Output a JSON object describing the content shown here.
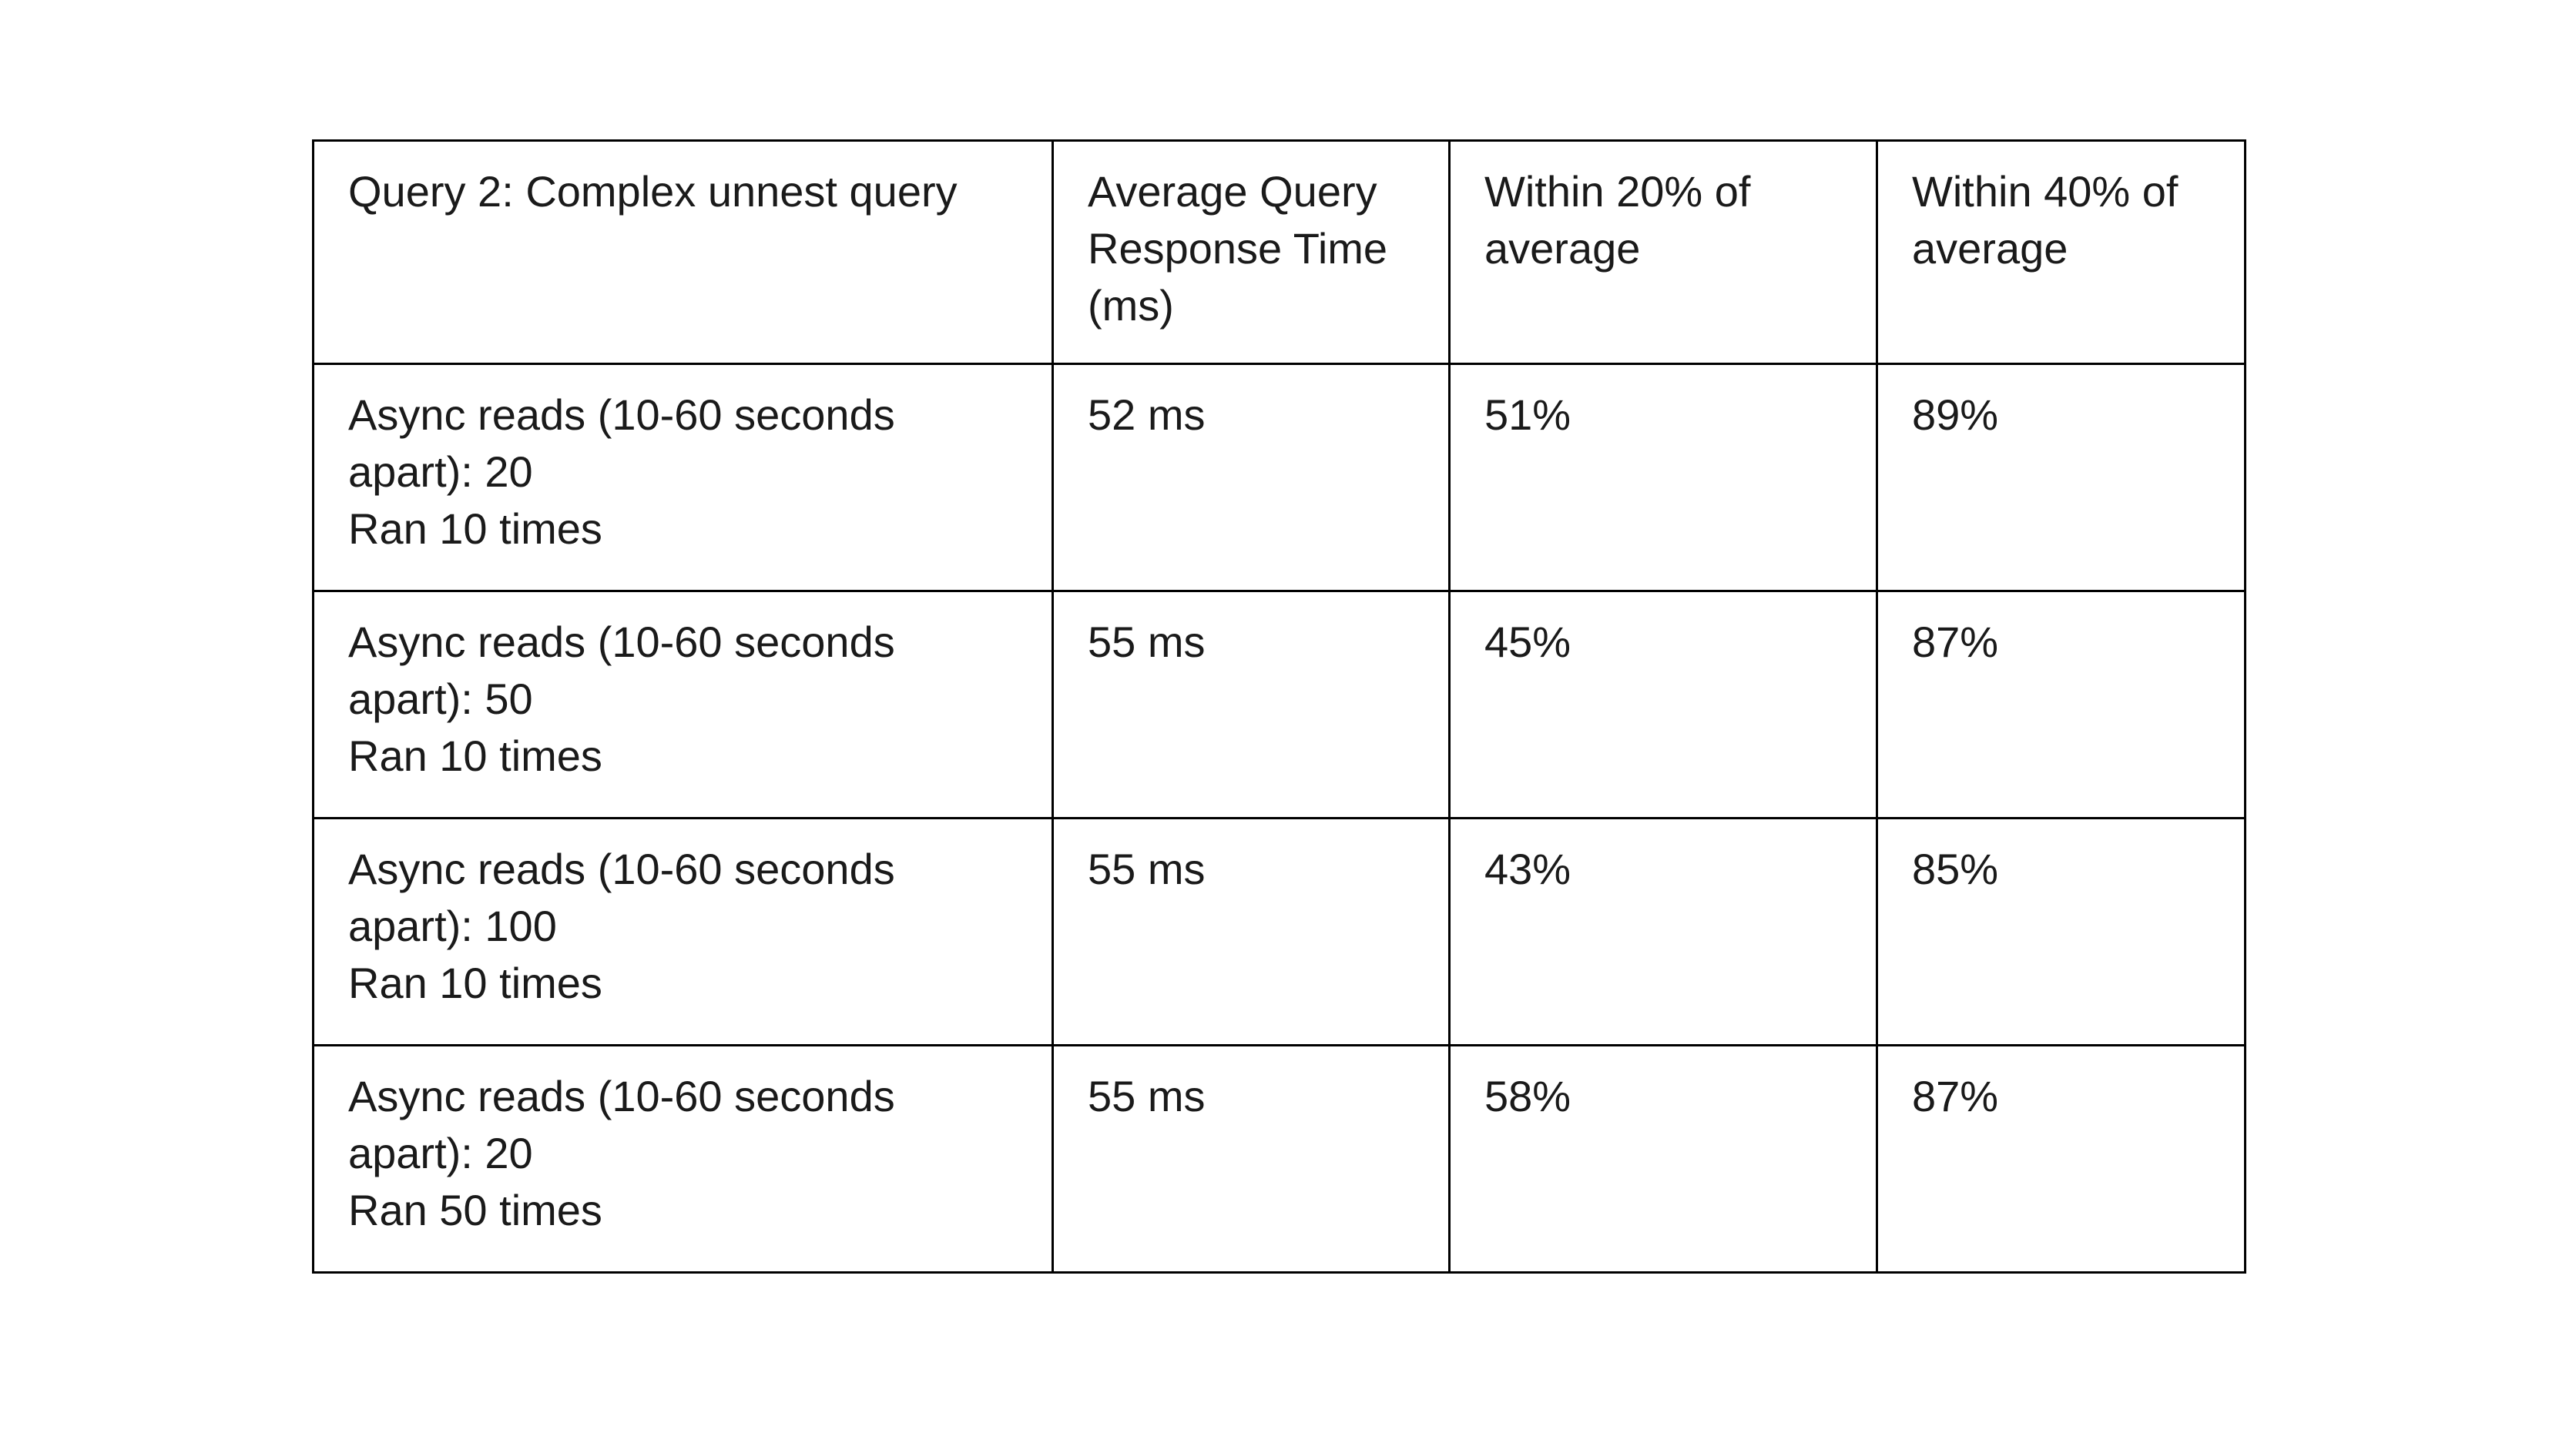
{
  "table": {
    "headers": [
      "Query 2: Complex unnest query",
      "Average Query Response Time (ms)",
      "Within 20% of average",
      "Within 40% of average"
    ],
    "rows": [
      {
        "label_line1": "Async reads (10-60 seconds apart): 20",
        "label_line2": "Ran 10 times",
        "avg_response_time": "52 ms",
        "within_20": "51%",
        "within_40": "89%"
      },
      {
        "label_line1": "Async reads (10-60 seconds apart): 50",
        "label_line2": "Ran 10 times",
        "avg_response_time": "55 ms",
        "within_20": "45%",
        "within_40": "87%"
      },
      {
        "label_line1": "Async reads (10-60 seconds apart): 100",
        "label_line2": "Ran 10 times",
        "avg_response_time": "55 ms",
        "within_20": "43%",
        "within_40": "85%"
      },
      {
        "label_line1": "Async reads (10-60 seconds apart): 20",
        "label_line2": "Ran 50 times",
        "avg_response_time": "55 ms",
        "within_20": "58%",
        "within_40": "87%"
      }
    ]
  },
  "chart_data": {
    "type": "table",
    "title": "Query 2: Complex unnest query",
    "columns": [
      "Query 2: Complex unnest query",
      "Average Query Response Time (ms)",
      "Within 20% of average",
      "Within 40% of average"
    ],
    "rows": [
      [
        "Async reads (10-60 seconds apart): 20 / Ran 10 times",
        "52 ms",
        "51%",
        "89%"
      ],
      [
        "Async reads (10-60 seconds apart): 50 / Ran 10 times",
        "55 ms",
        "45%",
        "87%"
      ],
      [
        "Async reads (10-60 seconds apart): 100 / Ran 10 times",
        "55 ms",
        "43%",
        "85%"
      ],
      [
        "Async reads (10-60 seconds apart): 20 / Ran 50 times",
        "55 ms",
        "58%",
        "87%"
      ]
    ],
    "avg_response_time_ms": [
      52,
      55,
      55,
      55
    ],
    "within_20_pct": [
      51,
      45,
      43,
      58
    ],
    "within_40_pct": [
      89,
      87,
      85,
      87
    ]
  }
}
